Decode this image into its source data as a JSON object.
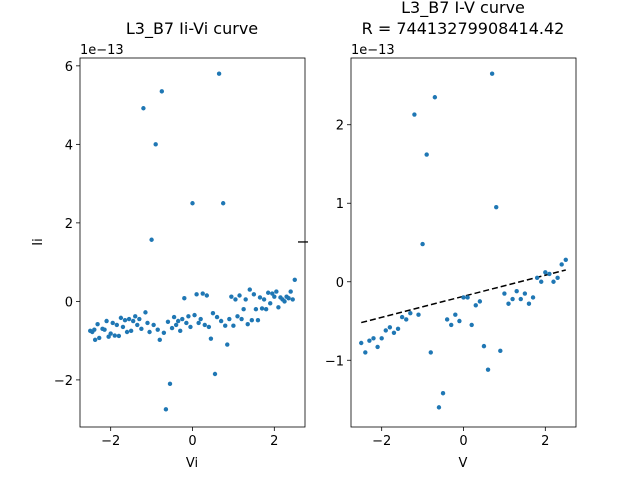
{
  "colors": {
    "point": "#1f77b4",
    "fit": "#000000",
    "axis": "#000000"
  },
  "chart_data": [
    {
      "type": "scatter",
      "title": "L3_B7 Ii-Vi curve",
      "xlabel": "Vi",
      "ylabel": "Ii",
      "offset_text": "1e−13",
      "xlim": [
        -2.75,
        2.75
      ],
      "ylim": [
        -3.2,
        6.2
      ],
      "scale": 1e-13,
      "xticks": [
        -2,
        0,
        2
      ],
      "yticks": [
        -2,
        0,
        2,
        4,
        6
      ],
      "xtick_labels": [
        "−2",
        "0",
        "2"
      ],
      "ytick_labels": [
        "−2",
        "0",
        "2",
        "4",
        "6"
      ],
      "grid": false,
      "series": [
        {
          "points": [
            [
              -2.5,
              -0.75
            ],
            [
              -2.45,
              -0.78
            ],
            [
              -2.4,
              -0.72
            ],
            [
              -2.38,
              -0.98
            ],
            [
              -2.32,
              -0.58
            ],
            [
              -2.28,
              -0.93
            ],
            [
              -2.2,
              -0.7
            ],
            [
              -2.15,
              -0.72
            ],
            [
              -2.1,
              -0.5
            ],
            [
              -2.05,
              -0.9
            ],
            [
              -2.0,
              -0.82
            ],
            [
              -1.95,
              -0.55
            ],
            [
              -1.9,
              -0.87
            ],
            [
              -1.85,
              -0.6
            ],
            [
              -1.8,
              -0.88
            ],
            [
              -1.75,
              -0.42
            ],
            [
              -1.7,
              -0.65
            ],
            [
              -1.65,
              -0.48
            ],
            [
              -1.6,
              -0.78
            ],
            [
              -1.55,
              -0.45
            ],
            [
              -1.5,
              -0.75
            ],
            [
              -1.45,
              -0.5
            ],
            [
              -1.4,
              -0.38
            ],
            [
              -1.35,
              -0.6
            ],
            [
              -1.3,
              -0.45
            ],
            [
              -1.25,
              -0.7
            ],
            [
              -1.2,
              4.92
            ],
            [
              -1.15,
              -0.28
            ],
            [
              -1.1,
              -0.55
            ],
            [
              -1.05,
              -0.78
            ],
            [
              -1.0,
              1.57
            ],
            [
              -0.95,
              -0.6
            ],
            [
              -0.9,
              4.0
            ],
            [
              -0.85,
              -0.72
            ],
            [
              -0.8,
              -0.98
            ],
            [
              -0.75,
              5.35
            ],
            [
              -0.7,
              -0.8
            ],
            [
              -0.65,
              -2.75
            ],
            [
              -0.6,
              -0.52
            ],
            [
              -0.55,
              -2.1
            ],
            [
              -0.5,
              -0.68
            ],
            [
              -0.45,
              -0.4
            ],
            [
              -0.4,
              -0.6
            ],
            [
              -0.35,
              -0.5
            ],
            [
              -0.3,
              -0.75
            ],
            [
              -0.25,
              -0.45
            ],
            [
              -0.2,
              0.08
            ],
            [
              -0.15,
              -0.55
            ],
            [
              -0.1,
              -0.38
            ],
            [
              -0.05,
              -0.65
            ],
            [
              0.0,
              2.5
            ],
            [
              0.05,
              -0.35
            ],
            [
              0.1,
              0.18
            ],
            [
              0.15,
              -0.55
            ],
            [
              0.2,
              -0.45
            ],
            [
              0.25,
              0.2
            ],
            [
              0.3,
              -0.6
            ],
            [
              0.35,
              0.15
            ],
            [
              0.4,
              -0.65
            ],
            [
              0.45,
              -0.95
            ],
            [
              0.5,
              -0.3
            ],
            [
              0.55,
              -1.85
            ],
            [
              0.6,
              -0.4
            ],
            [
              0.65,
              5.8
            ],
            [
              0.7,
              -0.5
            ],
            [
              0.75,
              2.5
            ],
            [
              0.8,
              -0.62
            ],
            [
              0.85,
              -1.1
            ],
            [
              0.9,
              -0.45
            ],
            [
              0.95,
              0.12
            ],
            [
              1.0,
              -0.62
            ],
            [
              1.05,
              0.05
            ],
            [
              1.1,
              -0.38
            ],
            [
              1.15,
              0.15
            ],
            [
              1.2,
              -0.45
            ],
            [
              1.25,
              -0.2
            ],
            [
              1.3,
              0.05
            ],
            [
              1.35,
              -0.58
            ],
            [
              1.4,
              0.3
            ],
            [
              1.45,
              -0.48
            ],
            [
              1.5,
              0.18
            ],
            [
              1.55,
              -0.2
            ],
            [
              1.6,
              -0.48
            ],
            [
              1.65,
              0.1
            ],
            [
              1.7,
              -0.18
            ],
            [
              1.75,
              0.05
            ],
            [
              1.8,
              -0.2
            ],
            [
              1.85,
              0.22
            ],
            [
              1.9,
              -0.05
            ],
            [
              1.95,
              0.2
            ],
            [
              2.0,
              0.12
            ],
            [
              2.05,
              0.25
            ],
            [
              2.1,
              -0.15
            ],
            [
              2.15,
              0.1
            ],
            [
              2.2,
              0.05
            ],
            [
              2.25,
              0.0
            ],
            [
              2.3,
              0.12
            ],
            [
              2.35,
              0.08
            ],
            [
              2.4,
              0.25
            ],
            [
              2.45,
              0.05
            ],
            [
              2.5,
              0.55
            ]
          ]
        }
      ]
    },
    {
      "type": "scatter",
      "title": "L3_B7 I-V curve",
      "subtitle": "R = 74413279908414.42",
      "xlabel": "V",
      "ylabel": "I",
      "offset_text": "1e−13",
      "xlim": [
        -2.75,
        2.75
      ],
      "ylim": [
        -1.85,
        2.85
      ],
      "scale": 1e-13,
      "xticks": [
        -2,
        0,
        2
      ],
      "yticks": [
        -1,
        0,
        1,
        2
      ],
      "xtick_labels": [
        "−2",
        "0",
        "2"
      ],
      "ytick_labels": [
        "−1",
        "0",
        "1",
        "2"
      ],
      "grid": false,
      "series": [
        {
          "points": [
            [
              -2.5,
              -0.78
            ],
            [
              -2.4,
              -0.9
            ],
            [
              -2.3,
              -0.75
            ],
            [
              -2.2,
              -0.72
            ],
            [
              -2.1,
              -0.83
            ],
            [
              -2.0,
              -0.72
            ],
            [
              -1.9,
              -0.62
            ],
            [
              -1.8,
              -0.58
            ],
            [
              -1.7,
              -0.65
            ],
            [
              -1.6,
              -0.6
            ],
            [
              -1.5,
              -0.45
            ],
            [
              -1.4,
              -0.48
            ],
            [
              -1.3,
              -0.4
            ],
            [
              -1.2,
              2.13
            ],
            [
              -1.1,
              -0.42
            ],
            [
              -1.0,
              0.48
            ],
            [
              -0.9,
              1.62
            ],
            [
              -0.8,
              -0.9
            ],
            [
              -0.7,
              2.35
            ],
            [
              -0.6,
              -1.6
            ],
            [
              -0.5,
              -1.42
            ],
            [
              -0.4,
              -0.48
            ],
            [
              -0.3,
              -0.55
            ],
            [
              -0.2,
              -0.42
            ],
            [
              -0.1,
              -0.5
            ],
            [
              0.0,
              -0.2
            ],
            [
              0.1,
              -0.2
            ],
            [
              0.2,
              -0.55
            ],
            [
              0.3,
              -0.3
            ],
            [
              0.4,
              -0.25
            ],
            [
              0.5,
              -0.82
            ],
            [
              0.6,
              -1.12
            ],
            [
              0.7,
              2.65
            ],
            [
              0.8,
              0.95
            ],
            [
              0.9,
              -0.88
            ],
            [
              1.0,
              -0.15
            ],
            [
              1.1,
              -0.28
            ],
            [
              1.2,
              -0.22
            ],
            [
              1.3,
              -0.12
            ],
            [
              1.4,
              -0.22
            ],
            [
              1.5,
              -0.15
            ],
            [
              1.6,
              -0.28
            ],
            [
              1.7,
              -0.2
            ],
            [
              1.8,
              0.05
            ],
            [
              1.9,
              0.0
            ],
            [
              2.0,
              0.12
            ],
            [
              2.1,
              0.1
            ],
            [
              2.2,
              0.0
            ],
            [
              2.3,
              0.05
            ],
            [
              2.4,
              0.22
            ],
            [
              2.5,
              0.28
            ]
          ]
        }
      ],
      "fit_line": {
        "style": "dashed",
        "x": [
          -2.5,
          2.5
        ],
        "y": [
          -0.52,
          0.15
        ]
      }
    }
  ]
}
